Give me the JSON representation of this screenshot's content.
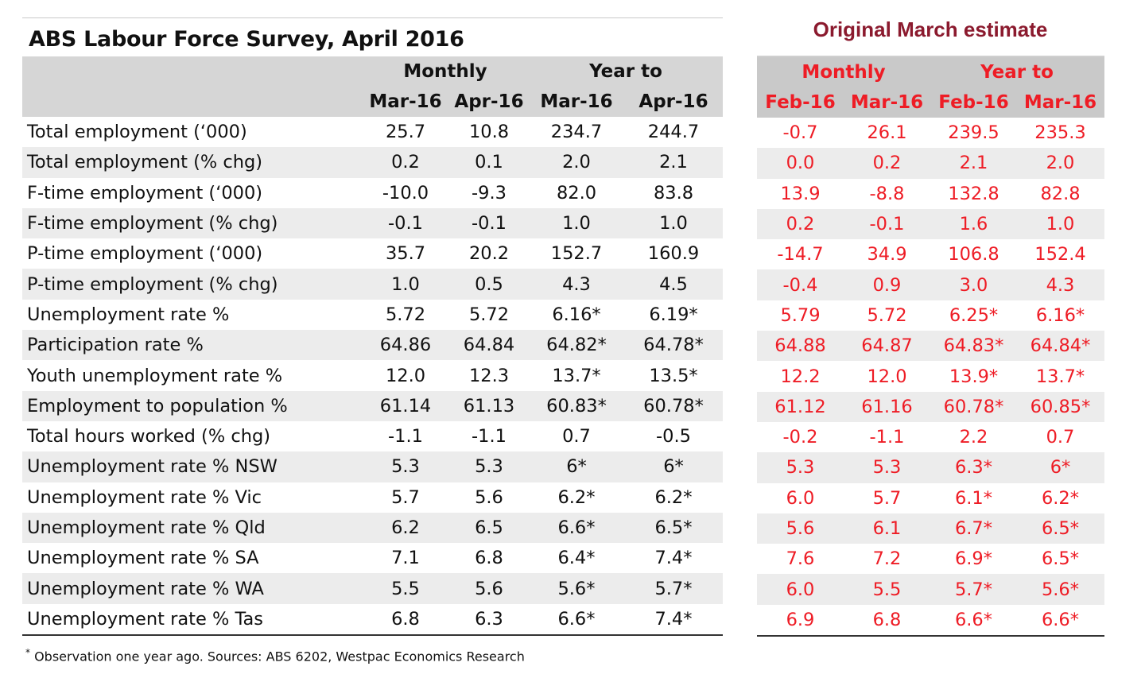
{
  "left": {
    "title": "ABS Labour Force Survey, April 2016",
    "groups": [
      "Monthly",
      "Year to"
    ],
    "columns": [
      "Mar-16",
      "Apr-16",
      "Mar-16",
      "Apr-16"
    ],
    "rows": [
      {
        "label": "Total employment (‘000)",
        "values": [
          "25.7",
          "10.8",
          "234.7",
          "244.7"
        ]
      },
      {
        "label": "Total employment (% chg)",
        "values": [
          "0.2",
          "0.1",
          "2.0",
          "2.1"
        ]
      },
      {
        "label": "F-time employment (‘000)",
        "values": [
          "-10.0",
          "-9.3",
          "82.0",
          "83.8"
        ]
      },
      {
        "label": "F-time employment (% chg)",
        "values": [
          "-0.1",
          "-0.1",
          "1.0",
          "1.0"
        ]
      },
      {
        "label": "P-time employment (‘000)",
        "values": [
          "35.7",
          "20.2",
          "152.7",
          "160.9"
        ]
      },
      {
        "label": "P-time employment (% chg)",
        "values": [
          "1.0",
          "0.5",
          "4.3",
          "4.5"
        ]
      },
      {
        "label": "Unemployment rate %",
        "values": [
          "5.72",
          "5.72",
          "6.16*",
          "6.19*"
        ]
      },
      {
        "label": "Participation rate %",
        "values": [
          "64.86",
          "64.84",
          "64.82*",
          "64.78*"
        ]
      },
      {
        "label": "Youth unemployment rate %",
        "values": [
          "12.0",
          "12.3",
          "13.7*",
          "13.5*"
        ]
      },
      {
        "label": "Employment to population %",
        "values": [
          "61.14",
          "61.13",
          "60.83*",
          "60.78*"
        ]
      },
      {
        "label": "Total hours worked (% chg)",
        "values": [
          "-1.1",
          "-1.1",
          "0.7",
          "-0.5"
        ]
      },
      {
        "label": "Unemployment rate % NSW",
        "values": [
          "5.3",
          "5.3",
          "6*",
          "6*"
        ]
      },
      {
        "label": "Unemployment rate % Vic",
        "values": [
          "5.7",
          "5.6",
          "6.2*",
          "6.2*"
        ]
      },
      {
        "label": "Unemployment rate % Qld",
        "values": [
          "6.2",
          "6.5",
          "6.6*",
          "6.5*"
        ]
      },
      {
        "label": "Unemployment rate % SA",
        "values": [
          "7.1",
          "6.8",
          "6.4*",
          "7.4*"
        ]
      },
      {
        "label": "Unemployment rate % WA",
        "values": [
          "5.5",
          "5.6",
          "5.6*",
          "5.7*"
        ]
      },
      {
        "label": "Unemployment rate % Tas",
        "values": [
          "6.8",
          "6.3",
          "6.6*",
          "7.4*"
        ]
      }
    ],
    "footnote_mark": "*",
    "footnote": " Observation one year ago.  Sources: ABS 6202, Westpac Economics Research"
  },
  "right": {
    "title": "Original March estimate",
    "groups": [
      "Monthly",
      "Year to"
    ],
    "columns": [
      "Feb-16",
      "Mar-16",
      "Feb-16",
      "Mar-16"
    ],
    "rows": [
      [
        "-0.7",
        "26.1",
        "239.5",
        "235.3"
      ],
      [
        "0.0",
        "0.2",
        "2.1",
        "2.0"
      ],
      [
        "13.9",
        "-8.8",
        "132.8",
        "82.8"
      ],
      [
        "0.2",
        "-0.1",
        "1.6",
        "1.0"
      ],
      [
        "-14.7",
        "34.9",
        "106.8",
        "152.4"
      ],
      [
        "-0.4",
        "0.9",
        "3.0",
        "4.3"
      ],
      [
        "5.79",
        "5.72",
        "6.25*",
        "6.16*"
      ],
      [
        "64.88",
        "64.87",
        "64.83*",
        "64.84*"
      ],
      [
        "12.2",
        "12.0",
        "13.9*",
        "13.7*"
      ],
      [
        "61.12",
        "61.16",
        "60.78*",
        "60.85*"
      ],
      [
        "-0.2",
        "-1.1",
        "2.2",
        "0.7"
      ],
      [
        "5.3",
        "5.3",
        "6.3*",
        "6*"
      ],
      [
        "6.0",
        "5.7",
        "6.1*",
        "6.2*"
      ],
      [
        "5.6",
        "6.1",
        "6.7*",
        "6.5*"
      ],
      [
        "7.6",
        "7.2",
        "6.9*",
        "6.5*"
      ],
      [
        "6.0",
        "5.5",
        "5.7*",
        "5.6*"
      ],
      [
        "6.9",
        "6.8",
        "6.6*",
        "6.6*"
      ]
    ]
  },
  "colors": {
    "header_bg": "#d6d6d6",
    "row_shade": "#ececec",
    "red_text": "#ee1c25",
    "title_maroon": "#8b1a2e"
  }
}
